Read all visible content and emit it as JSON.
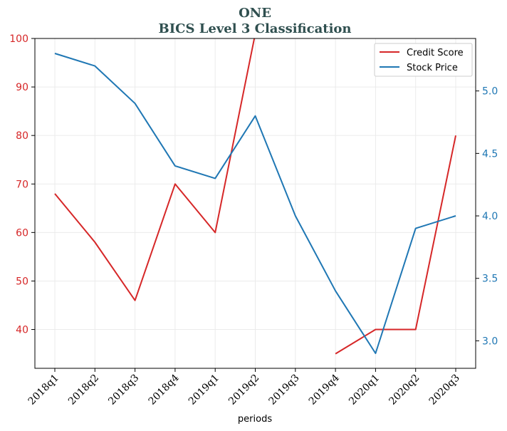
{
  "chart_data": {
    "type": "line",
    "title": "ONE",
    "subtitle": "BICS Level 3 Classification",
    "xlabel": "periods",
    "categories": [
      "2018q1",
      "2018q2",
      "2018q3",
      "2018q4",
      "2019q1",
      "2019q2",
      "2019q3",
      "2019q4",
      "2020q1",
      "2020q2",
      "2020q3"
    ],
    "series": [
      {
        "name": "Credit Score",
        "axis": "left",
        "color": "#d62728",
        "values": [
          68,
          58,
          46,
          70,
          60,
          101,
          null,
          35,
          40,
          40,
          80
        ]
      },
      {
        "name": "Stock Price",
        "axis": "right",
        "color": "#1f77b4",
        "values": [
          5.3,
          5.2,
          4.9,
          4.4,
          4.3,
          4.8,
          4.0,
          3.4,
          2.9,
          3.9,
          4.0
        ]
      }
    ],
    "left_axis": {
      "ylim": [
        32,
        100
      ],
      "ticks": [
        "40",
        "50",
        "60",
        "70",
        "80",
        "90",
        "100"
      ]
    },
    "right_axis": {
      "ylim": [
        2.78,
        5.42
      ],
      "ticks": [
        "3.0",
        "3.5",
        "4.0",
        "4.5",
        "5.0"
      ]
    },
    "grid": true,
    "legend": "top-right"
  }
}
